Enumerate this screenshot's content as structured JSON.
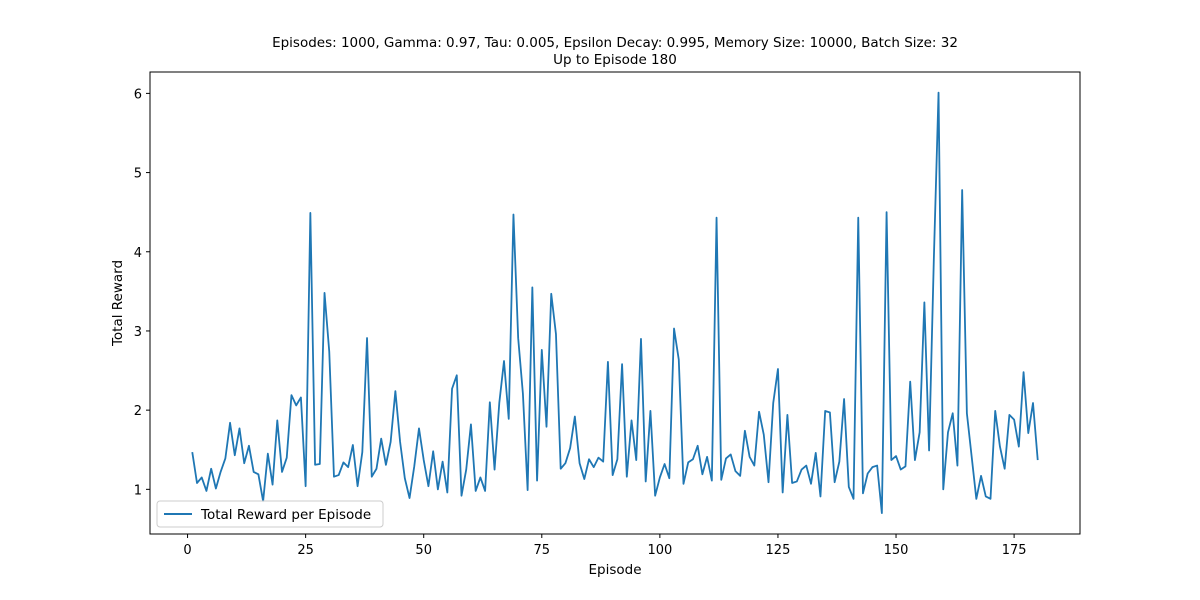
{
  "chart_data": {
    "type": "line",
    "title": "Episodes: 1000, Gamma: 0.97, Tau: 0.005, Epsilon Decay: 0.995, Memory Size: 10000, Batch Size: 32",
    "subtitle": "Up to Episode 180",
    "xlabel": "Episode",
    "ylabel": "Total Reward",
    "xlim": [
      -7.95,
      188.95
    ],
    "ylim": [
      0.436,
      6.27
    ],
    "xticks": [
      0,
      25,
      50,
      75,
      100,
      125,
      150,
      175
    ],
    "yticks": [
      1,
      2,
      3,
      4,
      5,
      6
    ],
    "grid": false,
    "legend_position": "lower-left",
    "series": [
      {
        "name": "Total Reward per Episode",
        "color": "#1f77b4",
        "x": [
          1,
          2,
          3,
          4,
          5,
          6,
          7,
          8,
          9,
          10,
          11,
          12,
          13,
          14,
          15,
          16,
          17,
          18,
          19,
          20,
          21,
          22,
          23,
          24,
          25,
          26,
          27,
          28,
          29,
          30,
          31,
          32,
          33,
          34,
          35,
          36,
          37,
          38,
          39,
          40,
          41,
          42,
          43,
          44,
          45,
          46,
          47,
          48,
          49,
          50,
          51,
          52,
          53,
          54,
          55,
          56,
          57,
          58,
          59,
          60,
          61,
          62,
          63,
          64,
          65,
          66,
          67,
          68,
          69,
          70,
          71,
          72,
          73,
          74,
          75,
          76,
          77,
          78,
          79,
          80,
          81,
          82,
          83,
          84,
          85,
          86,
          87,
          88,
          89,
          90,
          91,
          92,
          93,
          94,
          95,
          96,
          97,
          98,
          99,
          100,
          101,
          102,
          103,
          104,
          105,
          106,
          107,
          108,
          109,
          110,
          111,
          112,
          113,
          114,
          115,
          116,
          117,
          118,
          119,
          120,
          121,
          122,
          123,
          124,
          125,
          126,
          127,
          128,
          129,
          130,
          131,
          132,
          133,
          134,
          135,
          136,
          137,
          138,
          139,
          140,
          141,
          142,
          143,
          144,
          145,
          146,
          147,
          148,
          149,
          150,
          151,
          152,
          153,
          154,
          155,
          156,
          157,
          158,
          159,
          160,
          161,
          162,
          163,
          164,
          165,
          166,
          167,
          168,
          169,
          170,
          171,
          172,
          173,
          174,
          175,
          176,
          177,
          178,
          179,
          180
        ],
        "y": [
          1.47,
          1.08,
          1.15,
          0.98,
          1.26,
          1.01,
          1.22,
          1.39,
          1.84,
          1.43,
          1.77,
          1.33,
          1.55,
          1.22,
          1.19,
          0.85,
          1.45,
          1.06,
          1.87,
          1.22,
          1.4,
          2.19,
          2.06,
          2.16,
          1.04,
          4.49,
          1.31,
          1.32,
          3.48,
          2.74,
          1.16,
          1.18,
          1.34,
          1.28,
          1.56,
          1.04,
          1.47,
          2.91,
          1.16,
          1.26,
          1.64,
          1.31,
          1.6,
          2.24,
          1.6,
          1.14,
          0.89,
          1.29,
          1.77,
          1.37,
          1.04,
          1.48,
          1.0,
          1.35,
          0.96,
          2.27,
          2.44,
          0.92,
          1.25,
          1.82,
          0.98,
          1.15,
          0.98,
          2.1,
          1.25,
          2.09,
          2.62,
          1.89,
          4.47,
          2.91,
          2.21,
          0.99,
          3.55,
          1.11,
          2.76,
          1.79,
          3.47,
          2.96,
          1.26,
          1.33,
          1.52,
          1.92,
          1.33,
          1.13,
          1.38,
          1.28,
          1.4,
          1.35,
          2.61,
          1.18,
          1.38,
          2.58,
          1.16,
          1.87,
          1.37,
          2.9,
          1.1,
          1.99,
          0.92,
          1.15,
          1.32,
          1.14,
          3.03,
          2.64,
          1.07,
          1.34,
          1.38,
          1.55,
          1.19,
          1.41,
          1.11,
          4.43,
          1.12,
          1.39,
          1.44,
          1.23,
          1.17,
          1.74,
          1.41,
          1.3,
          1.98,
          1.69,
          1.09,
          2.09,
          2.52,
          0.96,
          1.94,
          1.08,
          1.1,
          1.25,
          1.3,
          1.07,
          1.46,
          0.91,
          1.99,
          1.97,
          1.09,
          1.35,
          2.14,
          1.03,
          0.88,
          4.43,
          0.95,
          1.2,
          1.28,
          1.3,
          0.7,
          4.5,
          1.37,
          1.42,
          1.25,
          1.29,
          2.36,
          1.37,
          1.72,
          3.36,
          1.49,
          3.9,
          6.01,
          1.0,
          1.72,
          1.96,
          1.3,
          4.78,
          1.96,
          1.42,
          0.88,
          1.17,
          0.91,
          0.88,
          1.99,
          1.54,
          1.26,
          1.94,
          1.88,
          1.54,
          2.48,
          1.71,
          2.09,
          1.37
        ]
      }
    ]
  }
}
